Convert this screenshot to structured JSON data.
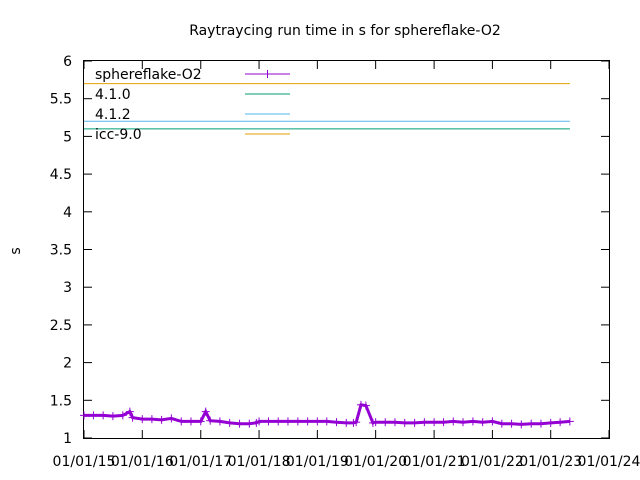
{
  "chart_data": {
    "type": "line",
    "title": "Raytraycing run time in s for sphereflake-O2",
    "xlabel": "",
    "ylabel": "s",
    "ylim": [
      1,
      6
    ],
    "y_ticks": [
      "1",
      "1.5",
      "2",
      "2.5",
      "3",
      "3.5",
      "4",
      "4.5",
      "5",
      "5.5",
      "6"
    ],
    "xlim": [
      "2015-01-01",
      "2024-01-01"
    ],
    "x_ticks": [
      "01/01/15",
      "01/01/16",
      "01/01/17",
      "01/01/18",
      "01/01/19",
      "01/01/20",
      "01/01/21",
      "01/01/22",
      "01/01/23",
      "01/01/24"
    ],
    "x_tick_dates": [
      "2015-01-01",
      "2016-01-01",
      "2017-01-01",
      "2018-01-01",
      "2019-01-01",
      "2020-01-01",
      "2021-01-01",
      "2022-01-01",
      "2023-01-01",
      "2024-01-01"
    ],
    "grid": false,
    "legend_position": "top-left",
    "series": [
      {
        "name": "sphereflake-O2",
        "color": "#9400d3",
        "marker": "plus",
        "x": [
          "2015-01-01",
          "2015-03-01",
          "2015-05-01",
          "2015-07-01",
          "2015-09-01",
          "2015-10-15",
          "2015-11-01",
          "2016-01-01",
          "2016-03-01",
          "2016-05-01",
          "2016-07-01",
          "2016-09-01",
          "2016-11-01",
          "2017-01-01",
          "2017-02-01",
          "2017-03-01",
          "2017-05-01",
          "2017-07-01",
          "2017-09-01",
          "2017-11-01",
          "2017-12-15",
          "2018-01-01",
          "2018-03-01",
          "2018-05-01",
          "2018-07-01",
          "2018-09-01",
          "2018-11-01",
          "2019-01-01",
          "2019-03-01",
          "2019-05-01",
          "2019-07-01",
          "2019-08-15",
          "2019-09-01",
          "2019-10-01",
          "2019-11-01",
          "2019-12-15",
          "2020-01-01",
          "2020-03-01",
          "2020-05-01",
          "2020-07-01",
          "2020-09-01",
          "2020-11-01",
          "2021-01-01",
          "2021-03-01",
          "2021-05-01",
          "2021-07-01",
          "2021-09-01",
          "2021-11-01",
          "2022-01-01",
          "2022-03-01",
          "2022-05-01",
          "2022-07-01",
          "2022-09-01",
          "2022-11-01",
          "2023-01-01",
          "2023-03-01",
          "2023-05-01"
        ],
        "values": [
          1.3,
          1.3,
          1.3,
          1.29,
          1.3,
          1.35,
          1.27,
          1.25,
          1.25,
          1.24,
          1.26,
          1.22,
          1.22,
          1.22,
          1.35,
          1.23,
          1.22,
          1.2,
          1.19,
          1.19,
          1.2,
          1.22,
          1.22,
          1.22,
          1.22,
          1.22,
          1.22,
          1.22,
          1.22,
          1.21,
          1.2,
          1.2,
          1.21,
          1.44,
          1.43,
          1.2,
          1.21,
          1.21,
          1.21,
          1.2,
          1.2,
          1.21,
          1.21,
          1.21,
          1.22,
          1.21,
          1.22,
          1.21,
          1.22,
          1.19,
          1.19,
          1.18,
          1.19,
          1.19,
          1.2,
          1.21,
          1.22
        ]
      },
      {
        "name": "4.1.0",
        "color": "#009e73",
        "x": [
          "2015-01-01",
          "2023-05-01"
        ],
        "values": [
          5.1,
          5.1
        ]
      },
      {
        "name": "4.1.2",
        "color": "#56b4e9",
        "x": [
          "2015-01-01",
          "2023-05-01"
        ],
        "values": [
          5.2,
          5.2
        ]
      },
      {
        "name": "icc-9.0",
        "color": "#e69f00",
        "x": [
          "2015-01-01",
          "2023-05-01"
        ],
        "values": [
          5.7,
          5.7
        ]
      }
    ]
  }
}
